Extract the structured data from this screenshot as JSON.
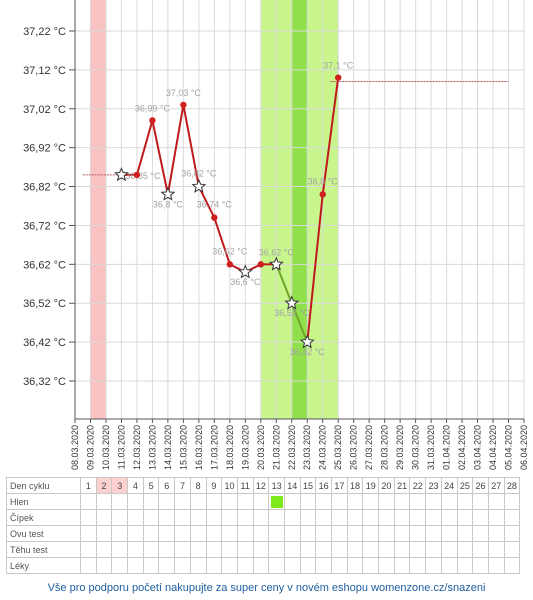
{
  "chart_data": {
    "type": "line",
    "title": "",
    "xlabel": "",
    "ylabel": "",
    "ylim": [
      36.22,
      37.27
    ],
    "y_ticks": [
      "37,22 °C",
      "37,12 °C",
      "37,02 °C",
      "36,92 °C",
      "36,82 °C",
      "36,72 °C",
      "36,62 °C",
      "36,52 °C",
      "36,42 °C",
      "36,32 °C"
    ],
    "y_tick_values": [
      37.22,
      37.12,
      37.02,
      36.92,
      36.82,
      36.72,
      36.62,
      36.52,
      36.42,
      36.32
    ],
    "x_categories": [
      "08.03.2020",
      "09.03.2020",
      "10.03.2020",
      "11.03.2020",
      "12.03.2020",
      "13.03.2020",
      "14.03.2020",
      "15.03.2020",
      "16.03.2020",
      "17.03.2020",
      "18.03.2020",
      "19.03.2020",
      "20.03.2020",
      "21.03.2020",
      "22.03.2020",
      "23.03.2020",
      "24.03.2020",
      "25.03.2020",
      "26.03.2020",
      "27.03.2020",
      "28.03.2020",
      "29.03.2020",
      "30.03.2020",
      "31.03.2020",
      "01.04.2020",
      "02.04.2020",
      "03.04.2020",
      "04.04.2020",
      "05.04.2020",
      "06.04.2020"
    ],
    "menstruation_days": [
      "09.03.2020"
    ],
    "fertile_window": {
      "start": "20.03.2020",
      "end": "25.03.2020"
    },
    "fertile_peak": "22.03.2020",
    "cover_line_before": {
      "from": "09.03.2020",
      "to": "11.03.2020",
      "value": 36.85
    },
    "cover_line_after": {
      "from": "25.03.2020",
      "to": "05.04.2020",
      "value": 37.09
    },
    "series": [
      {
        "values": [
          {
            "x": "11.03.2020",
            "y": 36.85,
            "marker": "star"
          },
          {
            "x": "12.03.2020",
            "y": 36.85,
            "marker": "dot"
          },
          {
            "x": "13.03.2020",
            "y": 36.99,
            "marker": "dot",
            "label": "36,99 °C"
          },
          {
            "x": "14.03.2020",
            "y": 36.8,
            "marker": "star",
            "label": "36,8 °C"
          },
          {
            "x": "15.03.2020",
            "y": 37.03,
            "marker": "dot",
            "label": "37,03 °C"
          },
          {
            "x": "16.03.2020",
            "y": 36.82,
            "marker": "star",
            "label": "36,82 °C"
          },
          {
            "x": "17.03.2020",
            "y": 36.74,
            "marker": "dot",
            "label": "36,74 °C"
          },
          {
            "x": "18.03.2020",
            "y": 36.62,
            "marker": "dot",
            "label": "36,62 °C"
          },
          {
            "x": "19.03.2020",
            "y": 36.6,
            "marker": "star",
            "label": "36,6 °C"
          },
          {
            "x": "20.03.2020",
            "y": 36.62,
            "marker": "dot"
          },
          {
            "x": "21.03.2020",
            "y": 36.62,
            "marker": "star",
            "label": "36,62 °C"
          },
          {
            "x": "22.03.2020",
            "y": 36.52,
            "marker": "star",
            "label": "36,52 °C"
          },
          {
            "x": "23.03.2020",
            "y": 36.42,
            "marker": "star",
            "label": "36,42 °C"
          },
          {
            "x": "24.03.2020",
            "y": 36.8,
            "marker": "dot",
            "label": "36,8 °C"
          },
          {
            "x": "25.03.2020",
            "y": 37.1,
            "marker": "dot",
            "label": "37,1 °C"
          }
        ]
      }
    ],
    "extra_labels": [
      {
        "x": "12.03.2020",
        "y": 36.85,
        "text": "36,85 °C"
      }
    ],
    "line_color": "#c0191c",
    "fertile_line_color": "#6fa52a",
    "grid": true
  },
  "cycle_table": {
    "row_labels": [
      "Den cyklu",
      "Hlen",
      "Čípek",
      "Ovu test",
      "Těhu test",
      "Léky"
    ],
    "days": [
      "1",
      "2",
      "3",
      "4",
      "5",
      "6",
      "7",
      "8",
      "9",
      "10",
      "11",
      "12",
      "13",
      "14",
      "15",
      "16",
      "17",
      "18",
      "19",
      "20",
      "21",
      "22",
      "23",
      "24",
      "25",
      "26",
      "27",
      "28"
    ],
    "highlighted_days": [
      "2",
      "3"
    ],
    "hlen_marked_day": "13"
  },
  "footer": {
    "text": "Vše pro podporu početí nakupujte za super ceny v novém eshopu womenzone.cz/snazeni"
  },
  "colors": {
    "menstruation": "#f9c3c3",
    "fertile": "#c8f58c",
    "fertile_peak": "#8fe04a",
    "hlen_mark": "#7dea1a",
    "footer_text": "#1f5fa0"
  }
}
